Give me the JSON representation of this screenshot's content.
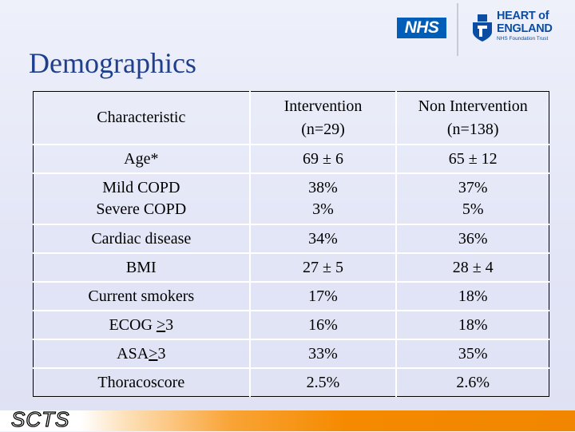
{
  "logos": {
    "nhs_text": "NHS",
    "trust_line1": "HEART of",
    "trust_line2": "ENGLAND",
    "trust_line3": "NHS Foundation Trust"
  },
  "title": "Demographics",
  "table": {
    "header": {
      "characteristic": "Characteristic",
      "intervention_line1": "Intervention",
      "intervention_line2": "(n=29)",
      "non_intervention_line1": "Non Intervention",
      "non_intervention_line2": "(n=138)"
    },
    "rows": [
      {
        "label": "Age*",
        "intervention": "69 ± 6",
        "non_intervention": "65 ± 12"
      },
      {
        "label_line1": "Mild COPD",
        "label_line2": "Severe COPD",
        "intervention_line1": "38%",
        "intervention_line2": "3%",
        "non_intervention_line1": "37%",
        "non_intervention_line2": "5%"
      },
      {
        "label": "Cardiac disease",
        "intervention": "34%",
        "non_intervention": "36%"
      },
      {
        "label": "BMI",
        "intervention": "27 ± 5",
        "non_intervention": "28 ± 4"
      },
      {
        "label": "Current smokers",
        "intervention": "17%",
        "non_intervention": "18%"
      },
      {
        "label_prefix": "ECOG ",
        "label_ge": ">",
        "label_suffix": "3",
        "intervention": "16%",
        "non_intervention": "18%"
      },
      {
        "label_prefix": "ASA",
        "label_ge": ">",
        "label_suffix": "3",
        "intervention": "33%",
        "non_intervention": "35%"
      },
      {
        "label": "Thoracoscore",
        "intervention": "2.5%",
        "non_intervention": "2.6%"
      }
    ]
  },
  "footer": {
    "brand": "SCTS",
    "colors": {
      "orange": "#f58a00",
      "title_blue": "#1f3f8c",
      "nhs_blue": "#005eb8"
    }
  }
}
